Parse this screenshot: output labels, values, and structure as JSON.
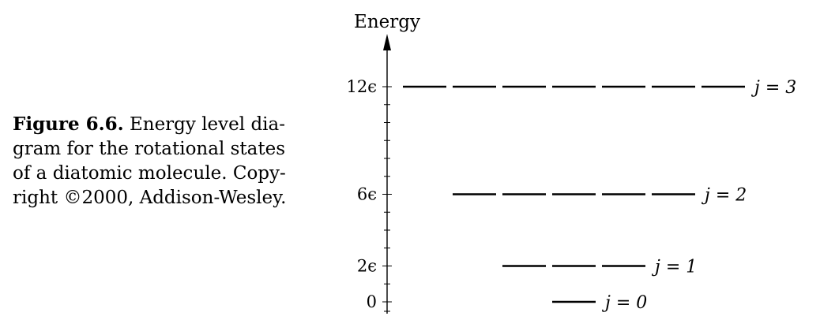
{
  "caption": {
    "label": "Figure 6.6.",
    "line1_rest": "Energy level dia-",
    "line2": "gram for the rotational states",
    "line3": "of a diatomic molecule. Copy-",
    "line4": "right ©2000, Addison-Wesley."
  },
  "diagram": {
    "axis_title": "Energy",
    "levels": [
      {
        "energy_label": "0",
        "energy": 0,
        "state_label": "j = 0",
        "segments": 1
      },
      {
        "energy_label": "2ϵ",
        "energy": 2,
        "state_label": "j = 1",
        "segments": 3
      },
      {
        "energy_label": "6ϵ",
        "energy": 6,
        "state_label": "j = 2",
        "segments": 5
      },
      {
        "energy_label": "12ϵ",
        "energy": 12,
        "state_label": "j = 3",
        "segments": 7
      }
    ],
    "minor_tick_step": 1,
    "energy_max": 12
  }
}
